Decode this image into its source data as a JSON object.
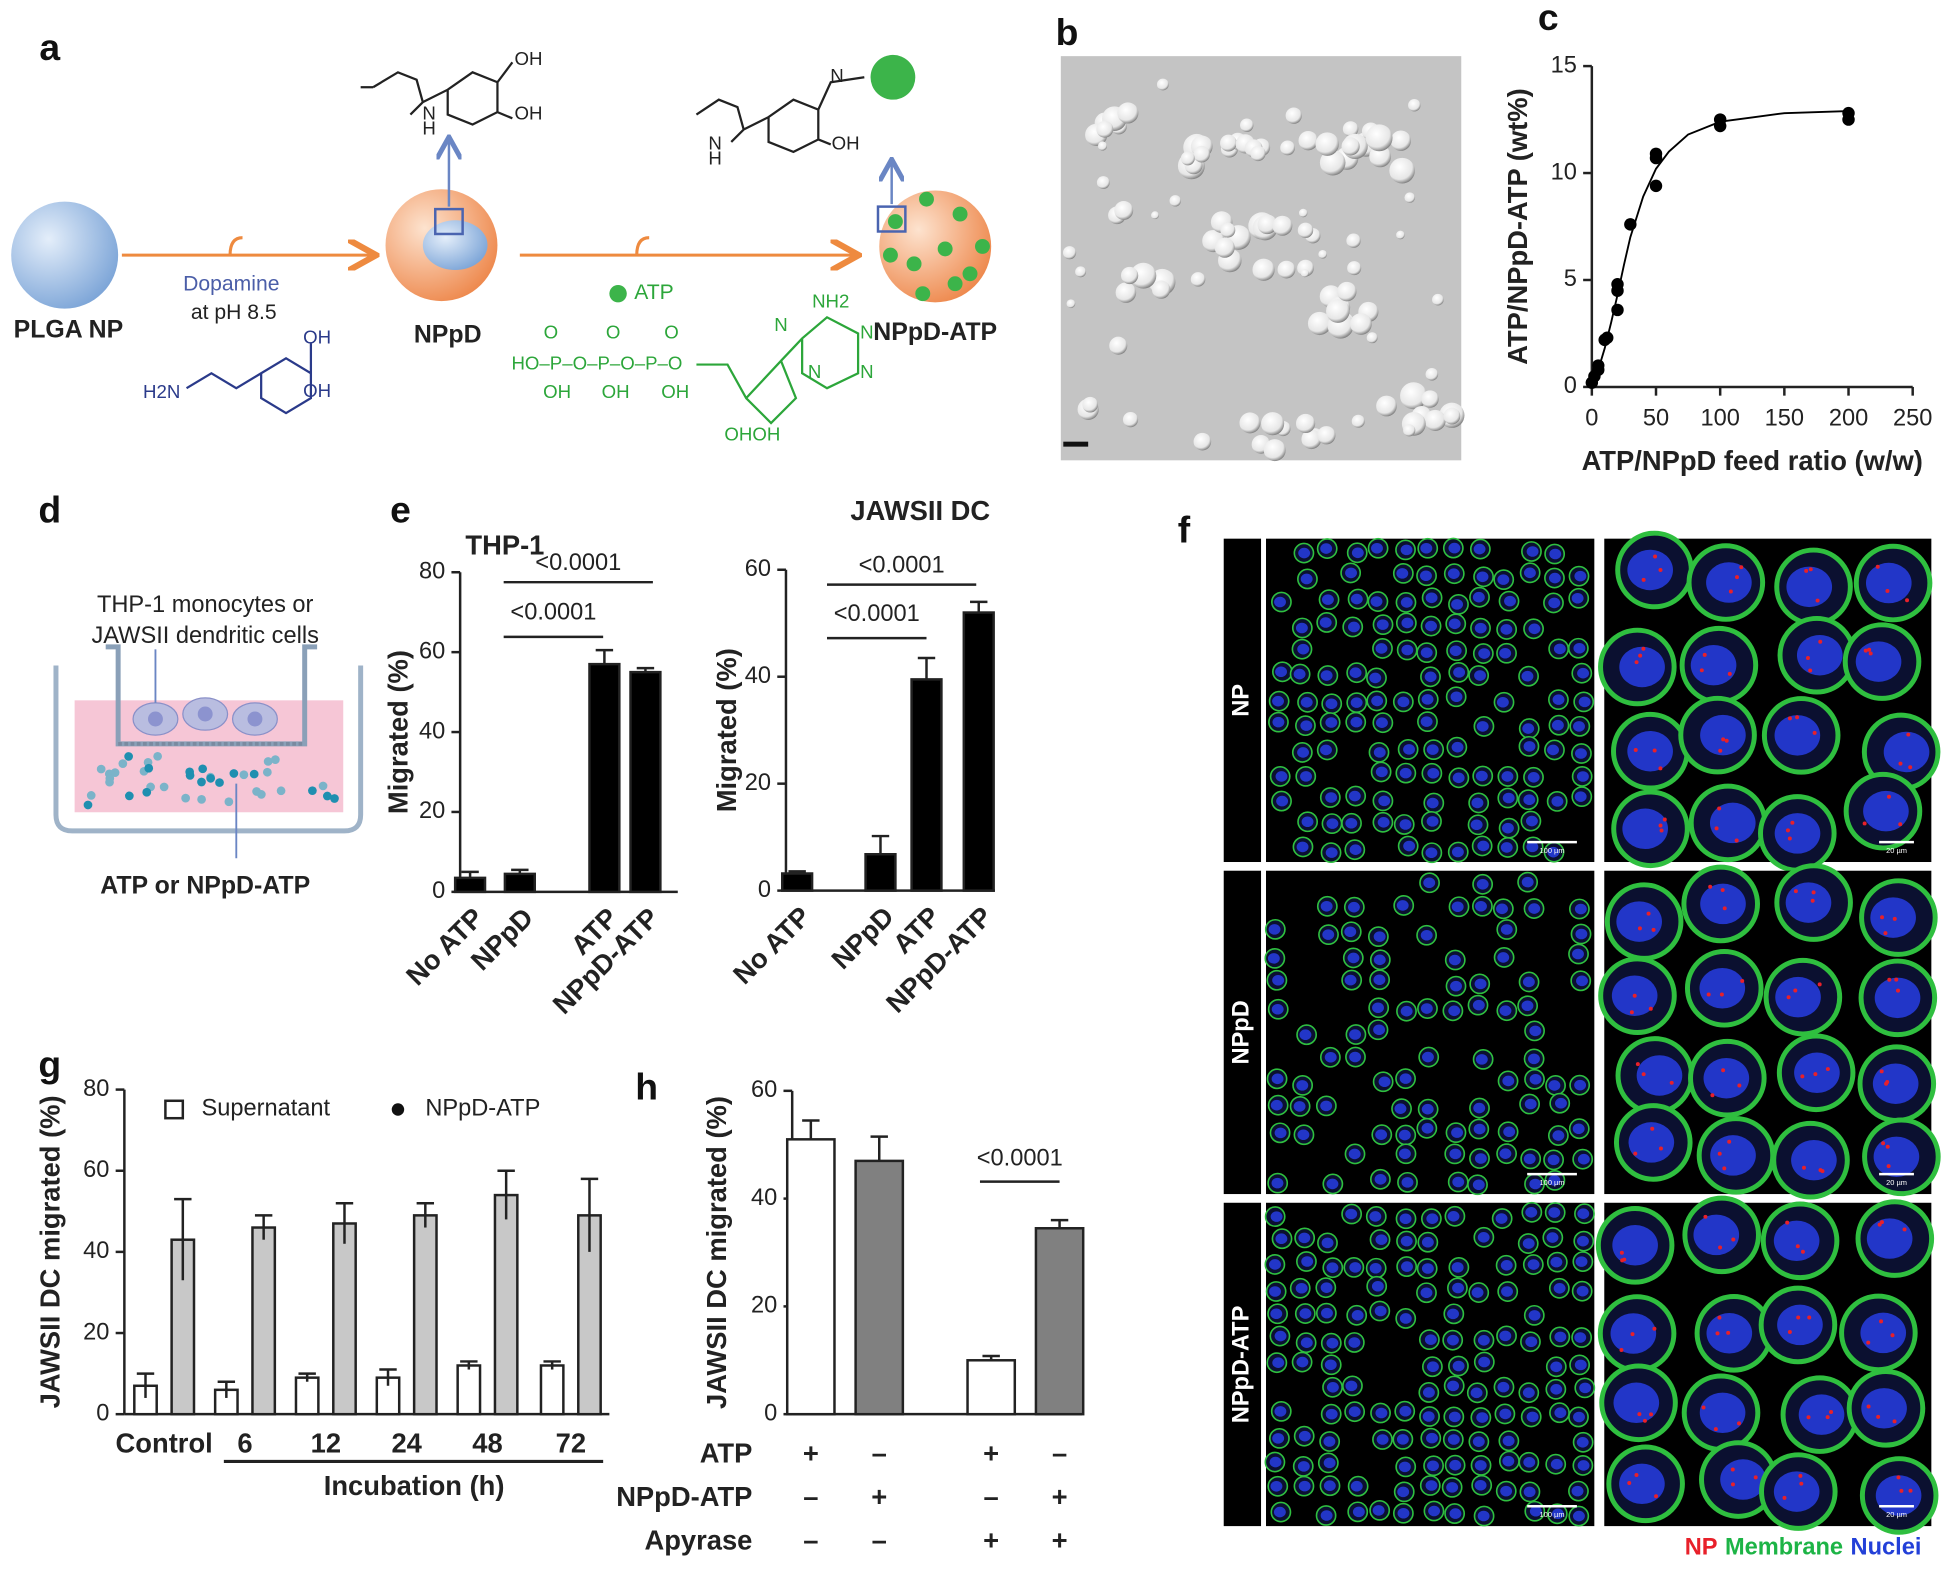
{
  "figure": {
    "panel_labels": [
      "a",
      "b",
      "c",
      "d",
      "e",
      "f",
      "g",
      "h"
    ],
    "panel_a": {
      "texts": [
        "PLGA NP",
        "Dopamine",
        "at pH 8.5",
        "NPpD",
        "ATP",
        "NPpD-ATP"
      ],
      "chem_labels": [
        "OH",
        "OH",
        "N",
        "H",
        "N",
        "OH",
        "N",
        "H",
        "H2N",
        "OH",
        "OH",
        "NH2",
        "N",
        "N",
        "N",
        "N",
        "O",
        "O",
        "O",
        "HO–P–O–P–O–P–O",
        "OH",
        "OH",
        "OH",
        "OHOH"
      ]
    },
    "panel_d": {
      "texts": [
        "THP-1 monocytes or",
        "JAWSII dendritic cells",
        "ATP or NPpD-ATP"
      ]
    },
    "panel_f": {
      "row_labels": [
        "NP",
        "NPpD",
        "NPpD-ATP"
      ],
      "scale_bars": [
        "100 µm",
        "20 µm"
      ],
      "legend": [
        {
          "name": "NP",
          "color": "#e8202a"
        },
        {
          "name": "Membrane",
          "color": "#1db446"
        },
        {
          "name": "Nuclei",
          "color": "#2340d8"
        }
      ]
    }
  },
  "chart_data": [
    {
      "type": "scatter",
      "xlabel": "ATP/NPpD feed ratio (w/w)",
      "ylabel": "ATP/NPpD-ATP (wt%)",
      "xlim": [
        0,
        250
      ],
      "ylim": [
        0,
        15
      ],
      "xticks": [
        0,
        50,
        100,
        150,
        200,
        250
      ],
      "yticks": [
        0,
        5,
        10,
        15
      ],
      "series": [
        {
          "color": "#000000",
          "x": [
            0,
            2,
            5,
            5,
            10,
            12,
            20,
            20,
            20,
            30,
            50,
            50,
            50,
            100,
            100,
            200,
            200
          ],
          "values": [
            0.2,
            0.5,
            1,
            0.8,
            2.2,
            2.3,
            3.6,
            4.5,
            4.8,
            7.6,
            9.4,
            10.7,
            10.9,
            12.2,
            12.5,
            12.5,
            12.8
          ]
        },
        {
          "color": "#000000",
          "style": "line",
          "x": [
            0,
            5,
            10,
            15,
            20,
            25,
            30,
            40,
            50,
            60,
            75,
            100,
            125,
            150,
            200
          ],
          "values": [
            0.2,
            0.8,
            1.8,
            3.0,
            4.3,
            5.7,
            7.0,
            8.9,
            10.2,
            11.0,
            11.8,
            12.4,
            12.6,
            12.8,
            12.9
          ]
        }
      ]
    },
    {
      "type": "bar",
      "title": "THP-1",
      "ylabel": "Migrated (%)",
      "categories": [
        "No ATP",
        "NPpD",
        "ATP",
        "NPpD-ATP"
      ],
      "values": [
        3.5,
        4.5,
        57,
        55
      ],
      "errors": [
        1.5,
        1,
        3.5,
        1
      ],
      "color": "#000000",
      "ylim": [
        0,
        80
      ],
      "yticks": [
        0,
        20,
        40,
        60,
        80
      ],
      "annotations": [
        "<0.0001",
        "<0.0001"
      ]
    },
    {
      "type": "bar",
      "title": "JAWSII DC",
      "ylabel": "Migrated (%)",
      "categories": [
        "No ATP",
        "NPpD",
        "ATP",
        "NPpD-ATP"
      ],
      "values": [
        3.2,
        6.8,
        39.5,
        52
      ],
      "errors": [
        0.4,
        3.4,
        4,
        2
      ],
      "color": "#000000",
      "ylim": [
        0,
        60
      ],
      "yticks": [
        0,
        20,
        40,
        60
      ],
      "annotations": [
        "<0.0001",
        "<0.0001"
      ]
    },
    {
      "type": "grouped_bar",
      "ylabel": "JAWSII DC migrated (%)",
      "xlabel": "Incubation (h)",
      "categories": [
        "Control",
        "6",
        "12",
        "24",
        "48",
        "72"
      ],
      "series": [
        {
          "name": "Supernatant",
          "color": "#ffffff",
          "values": [
            7,
            6,
            9,
            9,
            12,
            12
          ],
          "errors": [
            3,
            2,
            1,
            2,
            1,
            1
          ]
        },
        {
          "name": "NPpD-ATP",
          "color": "#c8c8c8",
          "values": [
            43,
            46,
            47,
            49,
            54,
            49
          ],
          "errors": [
            10,
            3,
            5,
            3,
            6,
            9
          ]
        }
      ],
      "ylim": [
        0,
        80
      ],
      "yticks": [
        0,
        20,
        40,
        60,
        80
      ]
    },
    {
      "type": "bar",
      "ylabel": "JAWSII DC migrated (%)",
      "values": [
        51,
        47,
        10,
        34.5
      ],
      "errors": [
        3.5,
        4.5,
        0.8,
        1.5
      ],
      "colors": [
        "#ffffff",
        "#808080",
        "#ffffff",
        "#808080"
      ],
      "ylim": [
        0,
        60
      ],
      "yticks": [
        0,
        20,
        40,
        60
      ],
      "conditions": [
        {
          "name": "ATP",
          "values": [
            "+",
            "–",
            "+",
            "–"
          ]
        },
        {
          "name": "NPpD-ATP",
          "values": [
            "–",
            "+",
            "–",
            "+"
          ]
        },
        {
          "name": "Apyrase",
          "values": [
            "–",
            "–",
            "+",
            "+"
          ]
        }
      ],
      "annotations": [
        "<0.0001"
      ]
    }
  ]
}
